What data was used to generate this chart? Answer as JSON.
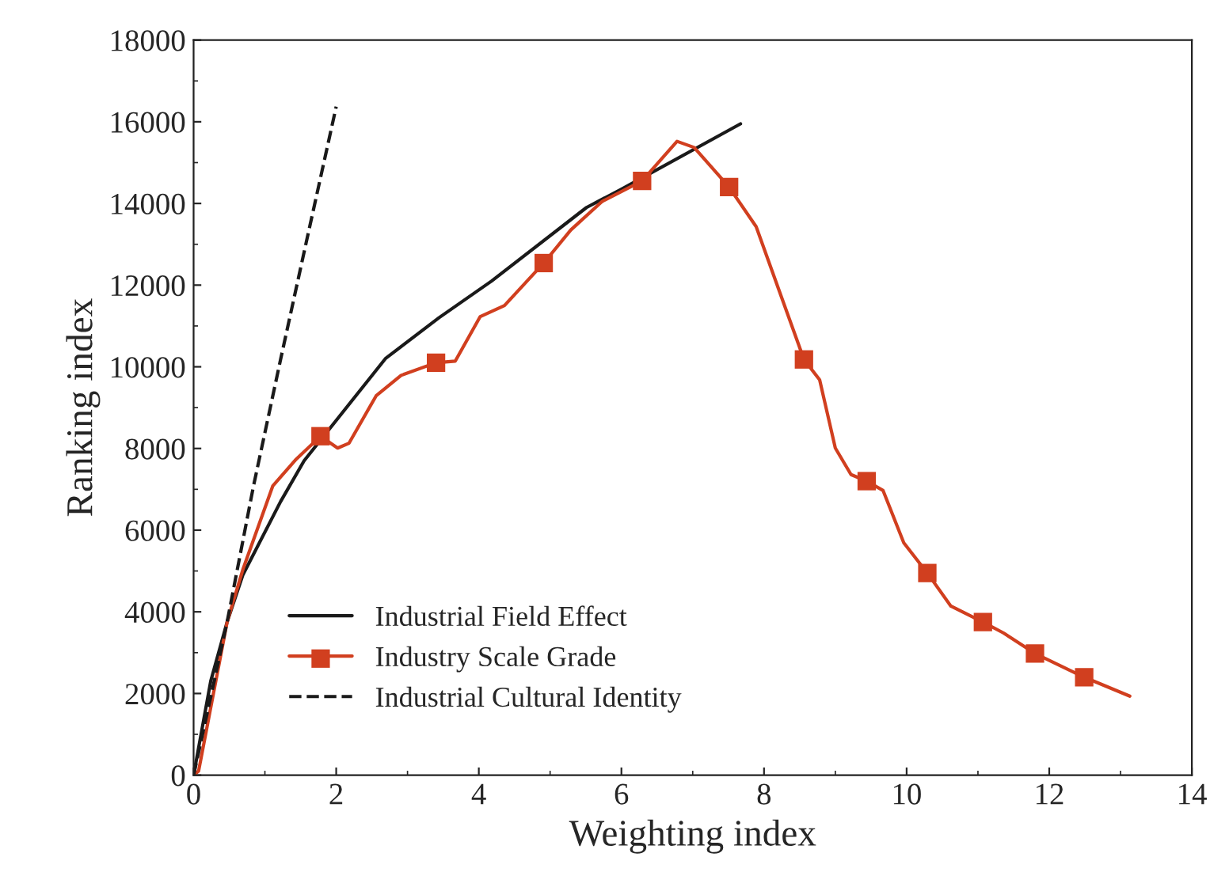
{
  "chart_data": {
    "type": "line",
    "xlabel": "Weighting index",
    "ylabel": "Ranking index",
    "xlim": [
      0,
      14
    ],
    "ylim": [
      0,
      18000
    ],
    "xticks": [
      0,
      2,
      4,
      6,
      8,
      10,
      12,
      14
    ],
    "yticks": [
      0,
      2000,
      4000,
      6000,
      8000,
      10000,
      12000,
      14000,
      16000,
      18000
    ],
    "grid": false,
    "legend": "bottom left",
    "series": [
      {
        "name": "Industrial Field Effect",
        "color": "#1a1a1a",
        "line_style": "solid",
        "x": [
          0,
          0.24,
          0.47,
          0.69,
          1.22,
          1.55,
          2.69,
          3.44,
          4.18,
          5.51,
          6.0,
          7.67
        ],
        "values": [
          0,
          2300,
          3750,
          4900,
          6700,
          7700,
          10200,
          11200,
          12100,
          13900,
          14350,
          15950
        ]
      },
      {
        "name": "Industry Scale Grade",
        "color": "#d13f1f",
        "line_style": "solid",
        "x": [
          0,
          0.07,
          0.47,
          0.69,
          1.11,
          1.44,
          1.78,
          2.02,
          2.18,
          2.56,
          2.91,
          3.4,
          3.67,
          4.02,
          4.36,
          4.91,
          5.29,
          5.73,
          6.29,
          6.78,
          7.02,
          7.51,
          7.89,
          8.24,
          8.56,
          8.78,
          9.0,
          9.22,
          9.44,
          9.67,
          9.96,
          10.29,
          10.62,
          11.07,
          11.36,
          11.8,
          12.49,
          13.13
        ],
        "values": [
          0,
          100,
          3750,
          5030,
          7080,
          7740,
          8300,
          8010,
          8130,
          9290,
          9790,
          10100,
          10140,
          11230,
          11500,
          12540,
          13350,
          14050,
          14550,
          15520,
          15370,
          14400,
          13430,
          11730,
          10180,
          9680,
          8010,
          7360,
          7200,
          6970,
          5690,
          4950,
          4140,
          3750,
          3480,
          2980,
          2400,
          1935
        ]
      },
      {
        "type": "scatter",
        "color": "#d13f1f",
        "marker": "square",
        "x": [
          1.78,
          3.4,
          4.91,
          6.29,
          7.51,
          8.56,
          9.44,
          10.29,
          11.07,
          11.8,
          12.49
        ],
        "values": [
          8300,
          10100,
          12540,
          14550,
          14400,
          10180,
          7200,
          4950,
          3750,
          2980,
          2400
        ]
      },
      {
        "name": "Industrial Cultural Identity",
        "color": "#1a1a1a",
        "line_style": "dashed",
        "x": [
          0,
          0.47,
          0.84,
          1.22,
          1.58,
          2.0
        ],
        "values": [
          0,
          3750,
          7080,
          10180,
          13050,
          16370
        ]
      }
    ]
  }
}
